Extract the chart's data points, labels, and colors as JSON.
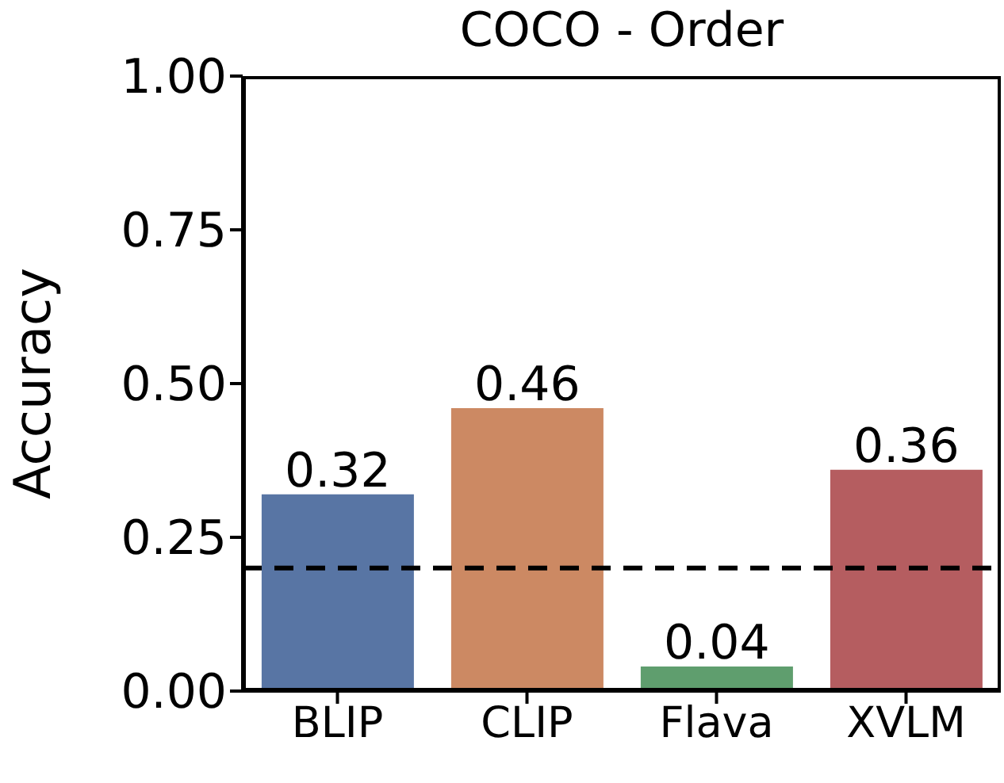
{
  "chart_data": {
    "type": "bar",
    "title": "COCO - Order",
    "ylabel": "Accuracy",
    "categories": [
      "BLIP",
      "CLIP",
      "Flava",
      "XVLM"
    ],
    "values": [
      0.32,
      0.46,
      0.04,
      0.36
    ],
    "colors": [
      "#5875a4",
      "#cc8963",
      "#5f9e6e",
      "#b55d60"
    ],
    "ylim": [
      0,
      1
    ],
    "yticks": [
      {
        "value": 0,
        "label": "0.00"
      },
      {
        "value": 0.25,
        "label": "0.25"
      },
      {
        "value": 0.5,
        "label": "0.50"
      },
      {
        "value": 0.75,
        "label": "0.75"
      },
      {
        "value": 1,
        "label": "1.00"
      }
    ],
    "data_labels": true,
    "ref_lines": [
      {
        "axis": "y",
        "value": 0.2,
        "label": null,
        "color": "#000000",
        "line_style": "dashed"
      }
    ],
    "grid": false
  }
}
